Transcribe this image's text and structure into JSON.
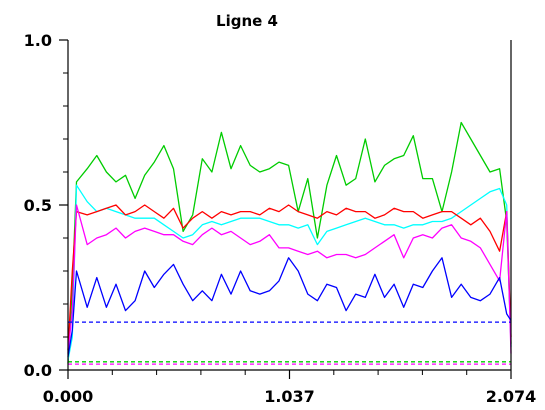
{
  "chart_data": {
    "type": "line",
    "title": "Ligne 4",
    "xlabel": "",
    "ylabel": "",
    "xlim": [
      0.0,
      2.074
    ],
    "ylim": [
      0.0,
      1.0
    ],
    "x_ticks": [
      {
        "value": 0.0,
        "label": "0.000"
      },
      {
        "value": 1.037,
        "label": "1.037"
      },
      {
        "value": 2.074,
        "label": "2.074"
      }
    ],
    "y_ticks": [
      {
        "value": 0.0,
        "label": "0.0"
      },
      {
        "value": 0.5,
        "label": "0.5"
      },
      {
        "value": 1.0,
        "label": "1.0"
      }
    ],
    "grid": false,
    "legend": "none",
    "x": [
      0.0,
      0.02,
      0.04,
      0.0898,
      0.1347,
      0.1796,
      0.2245,
      0.2694,
      0.3143,
      0.3592,
      0.4041,
      0.449,
      0.4939,
      0.5388,
      0.5837,
      0.6286,
      0.6735,
      0.7184,
      0.7633,
      0.8082,
      0.8531,
      0.898,
      0.9429,
      0.9878,
      1.0327,
      1.0776,
      1.1225,
      1.1674,
      1.2123,
      1.2572,
      1.3021,
      1.347,
      1.3919,
      1.4368,
      1.4817,
      1.5266,
      1.5715,
      1.6164,
      1.6613,
      1.7062,
      1.7511,
      1.796,
      1.8409,
      1.8858,
      1.9307,
      1.9756,
      2.0205,
      2.054,
      2.074
    ],
    "series": [
      {
        "color": "#00cc00",
        "style": "solid",
        "values": [
          0.02,
          0.25,
          0.57,
          0.61,
          0.65,
          0.6,
          0.57,
          0.59,
          0.52,
          0.59,
          0.63,
          0.68,
          0.61,
          0.42,
          0.47,
          0.64,
          0.6,
          0.72,
          0.61,
          0.68,
          0.62,
          0.6,
          0.61,
          0.63,
          0.62,
          0.48,
          0.58,
          0.4,
          0.56,
          0.65,
          0.56,
          0.58,
          0.7,
          0.57,
          0.62,
          0.64,
          0.65,
          0.71,
          0.58,
          0.58,
          0.48,
          0.6,
          0.75,
          0.7,
          0.65,
          0.6,
          0.61,
          0.45,
          0.08
        ]
      },
      {
        "color": "#00ffff",
        "style": "solid",
        "values": [
          0.03,
          0.1,
          0.56,
          0.51,
          0.48,
          0.49,
          0.48,
          0.47,
          0.46,
          0.46,
          0.46,
          0.44,
          0.42,
          0.4,
          0.41,
          0.44,
          0.45,
          0.44,
          0.45,
          0.46,
          0.46,
          0.46,
          0.45,
          0.44,
          0.44,
          0.43,
          0.44,
          0.38,
          0.42,
          0.43,
          0.44,
          0.45,
          0.46,
          0.45,
          0.44,
          0.44,
          0.43,
          0.44,
          0.44,
          0.45,
          0.45,
          0.46,
          0.48,
          0.5,
          0.52,
          0.54,
          0.55,
          0.5,
          0.07
        ]
      },
      {
        "color": "#ff0000",
        "style": "solid",
        "values": [
          0.06,
          0.3,
          0.48,
          0.47,
          0.48,
          0.49,
          0.5,
          0.47,
          0.48,
          0.5,
          0.48,
          0.46,
          0.49,
          0.43,
          0.46,
          0.48,
          0.46,
          0.48,
          0.47,
          0.48,
          0.48,
          0.47,
          0.49,
          0.48,
          0.5,
          0.48,
          0.47,
          0.46,
          0.48,
          0.47,
          0.49,
          0.48,
          0.48,
          0.46,
          0.47,
          0.49,
          0.48,
          0.48,
          0.46,
          0.47,
          0.48,
          0.48,
          0.46,
          0.44,
          0.46,
          0.42,
          0.36,
          0.48,
          0.1
        ]
      },
      {
        "color": "#ff00ff",
        "style": "solid",
        "values": [
          0.05,
          0.18,
          0.5,
          0.38,
          0.4,
          0.41,
          0.43,
          0.4,
          0.42,
          0.43,
          0.42,
          0.41,
          0.41,
          0.39,
          0.38,
          0.41,
          0.43,
          0.41,
          0.42,
          0.4,
          0.38,
          0.39,
          0.41,
          0.37,
          0.37,
          0.36,
          0.35,
          0.36,
          0.34,
          0.35,
          0.35,
          0.34,
          0.35,
          0.37,
          0.39,
          0.41,
          0.34,
          0.4,
          0.41,
          0.4,
          0.43,
          0.44,
          0.4,
          0.39,
          0.37,
          0.32,
          0.27,
          0.48,
          0.05
        ]
      },
      {
        "color": "#0000ff",
        "style": "solid",
        "values": [
          0.04,
          0.12,
          0.3,
          0.19,
          0.28,
          0.19,
          0.26,
          0.18,
          0.21,
          0.3,
          0.25,
          0.29,
          0.32,
          0.26,
          0.21,
          0.24,
          0.21,
          0.29,
          0.23,
          0.3,
          0.24,
          0.23,
          0.24,
          0.27,
          0.34,
          0.3,
          0.23,
          0.21,
          0.26,
          0.25,
          0.18,
          0.23,
          0.22,
          0.29,
          0.22,
          0.26,
          0.19,
          0.26,
          0.25,
          0.3,
          0.34,
          0.22,
          0.26,
          0.22,
          0.21,
          0.23,
          0.28,
          0.17,
          0.15
        ]
      },
      {
        "color": "#0000ff",
        "style": "dashed",
        "values": [
          0.145,
          0.145,
          0.145,
          0.145,
          0.145,
          0.145,
          0.145,
          0.145,
          0.145,
          0.145,
          0.145,
          0.145,
          0.145,
          0.145,
          0.145,
          0.145,
          0.145,
          0.145,
          0.145,
          0.145,
          0.145,
          0.145,
          0.145,
          0.145,
          0.145,
          0.145,
          0.145,
          0.145,
          0.145,
          0.145,
          0.145,
          0.145,
          0.145,
          0.145,
          0.145,
          0.145,
          0.145,
          0.145,
          0.145,
          0.145,
          0.145,
          0.145,
          0.145,
          0.145,
          0.145,
          0.145,
          0.145,
          0.145,
          0.145
        ]
      },
      {
        "color": "#00cc00",
        "style": "dashed",
        "values": [
          0.025,
          0.025,
          0.025,
          0.025,
          0.025,
          0.025,
          0.025,
          0.025,
          0.025,
          0.025,
          0.025,
          0.025,
          0.025,
          0.025,
          0.025,
          0.025,
          0.025,
          0.025,
          0.025,
          0.025,
          0.025,
          0.025,
          0.025,
          0.025,
          0.025,
          0.025,
          0.025,
          0.025,
          0.025,
          0.025,
          0.025,
          0.025,
          0.025,
          0.025,
          0.025,
          0.025,
          0.025,
          0.025,
          0.025,
          0.025,
          0.025,
          0.025,
          0.025,
          0.025,
          0.025,
          0.025,
          0.025,
          0.025,
          0.025
        ]
      },
      {
        "color": "#ff00ff",
        "style": "dashed",
        "values": [
          0.018,
          0.018,
          0.018,
          0.018,
          0.018,
          0.018,
          0.018,
          0.018,
          0.018,
          0.018,
          0.018,
          0.018,
          0.018,
          0.018,
          0.018,
          0.018,
          0.018,
          0.018,
          0.018,
          0.018,
          0.018,
          0.018,
          0.018,
          0.018,
          0.018,
          0.018,
          0.018,
          0.018,
          0.018,
          0.018,
          0.018,
          0.018,
          0.018,
          0.018,
          0.018,
          0.018,
          0.018,
          0.018,
          0.018,
          0.018,
          0.018,
          0.018,
          0.018,
          0.018,
          0.018,
          0.018,
          0.018,
          0.018,
          0.018
        ]
      }
    ]
  }
}
